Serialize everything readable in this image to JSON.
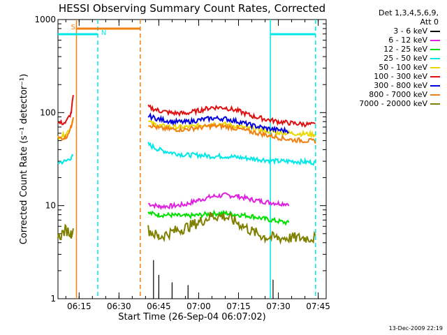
{
  "chart_data": {
    "type": "line",
    "title": "HESSI Observing Summary Count Rates, Corrected",
    "xlabel": "Start Time (26-Sep-04 06:07:02)",
    "ylabel": "Corrected Count Rate (s⁻¹ detector⁻¹)",
    "yscale": "log",
    "ylim": [
      1,
      1000
    ],
    "xlim": [
      "06:07:02",
      "07:48:00"
    ],
    "x_tick_labels": [
      "06:15",
      "06:30",
      "06:45",
      "07:00",
      "07:15",
      "07:30",
      "07:45"
    ],
    "y_tick_labels": [
      "1",
      "10",
      "100",
      "1000"
    ],
    "legend_title": [
      "Det 1,3,4,5,6,9,",
      "Att 0"
    ],
    "series": [
      {
        "name": "3 - 6 keV",
        "color": "#000000",
        "points": [
          [
            "06:42",
            1.0
          ],
          [
            "06:43",
            2.6
          ],
          [
            "06:45",
            1.8
          ],
          [
            "06:50",
            1.5
          ],
          [
            "06:56",
            1.4
          ],
          [
            "07:28",
            1.6
          ]
        ]
      },
      {
        "name": "6 - 12 keV",
        "color": "#e020e0",
        "points": [
          [
            "06:41",
            10.5
          ],
          [
            "06:45",
            9.8
          ],
          [
            "06:50",
            9.9
          ],
          [
            "06:55",
            10.3
          ],
          [
            "07:00",
            11.5
          ],
          [
            "07:05",
            12.5
          ],
          [
            "07:10",
            13.0
          ],
          [
            "07:15",
            12.6
          ],
          [
            "07:20",
            11.6
          ],
          [
            "07:25",
            11.0
          ],
          [
            "07:30",
            10.6
          ],
          [
            "07:34",
            10.5
          ]
        ]
      },
      {
        "name": "12 - 25 keV",
        "color": "#00e000",
        "points": [
          [
            "06:41",
            8.3
          ],
          [
            "06:45",
            8.0
          ],
          [
            "06:50",
            7.9
          ],
          [
            "06:55",
            7.7
          ],
          [
            "07:00",
            7.9
          ],
          [
            "07:05",
            8.2
          ],
          [
            "07:10",
            8.3
          ],
          [
            "07:15",
            8.0
          ],
          [
            "07:20",
            7.7
          ],
          [
            "07:25",
            7.2
          ],
          [
            "07:30",
            6.8
          ],
          [
            "07:34",
            6.5
          ]
        ]
      },
      {
        "name": "25 - 50 keV",
        "color": "#00e8e8",
        "points": [
          [
            "06:07",
            29
          ],
          [
            "06:10",
            30
          ],
          [
            "06:12",
            33
          ],
          [
            "06:13",
            34
          ],
          [
            "06:41",
            46
          ],
          [
            "06:42",
            44
          ],
          [
            "06:45",
            40
          ],
          [
            "06:50",
            37
          ],
          [
            "06:55",
            35
          ],
          [
            "07:00",
            35
          ],
          [
            "07:05",
            34
          ],
          [
            "07:10",
            34
          ],
          [
            "07:15",
            33
          ],
          [
            "07:20",
            32
          ],
          [
            "07:25",
            31
          ],
          [
            "07:30",
            30
          ],
          [
            "07:35",
            30
          ],
          [
            "07:40",
            29.5
          ],
          [
            "07:44",
            29
          ]
        ]
      },
      {
        "name": "50 - 100 keV",
        "color": "#e8d800",
        "points": [
          [
            "06:07",
            55
          ],
          [
            "06:10",
            58
          ],
          [
            "06:12",
            72
          ],
          [
            "06:13",
            95
          ],
          [
            "06:41",
            80
          ],
          [
            "06:45",
            72
          ],
          [
            "06:50",
            70
          ],
          [
            "06:55",
            70
          ],
          [
            "07:00",
            72
          ],
          [
            "07:05",
            76
          ],
          [
            "07:10",
            75
          ],
          [
            "07:15",
            71
          ],
          [
            "07:20",
            67
          ],
          [
            "07:25",
            64
          ],
          [
            "07:30",
            61
          ],
          [
            "07:35",
            60
          ],
          [
            "07:40",
            59
          ],
          [
            "07:44",
            58
          ]
        ]
      },
      {
        "name": "100 - 300 keV",
        "color": "#e01010",
        "points": [
          [
            "06:07",
            77
          ],
          [
            "06:10",
            78
          ],
          [
            "06:12",
            100
          ],
          [
            "06:13",
            170
          ],
          [
            "06:41",
            115
          ],
          [
            "06:45",
            105
          ],
          [
            "06:50",
            99
          ],
          [
            "06:55",
            98
          ],
          [
            "07:00",
            105
          ],
          [
            "07:05",
            114
          ],
          [
            "07:10",
            113
          ],
          [
            "07:15",
            104
          ],
          [
            "07:20",
            92
          ],
          [
            "07:25",
            85
          ],
          [
            "07:30",
            80
          ],
          [
            "07:35",
            77
          ],
          [
            "07:40",
            75
          ],
          [
            "07:44",
            74
          ]
        ]
      },
      {
        "name": "300 - 800 keV",
        "color": "#0000e0",
        "points": [
          [
            "06:41",
            92
          ],
          [
            "06:45",
            85
          ],
          [
            "06:50",
            80
          ],
          [
            "06:55",
            79
          ],
          [
            "07:00",
            83
          ],
          [
            "07:05",
            87
          ],
          [
            "07:10",
            86
          ],
          [
            "07:15",
            80
          ],
          [
            "07:20",
            73
          ],
          [
            "07:25",
            68
          ],
          [
            "07:30",
            65
          ],
          [
            "07:34",
            64
          ]
        ]
      },
      {
        "name": "800 - 7000 keV",
        "color": "#f08010",
        "points": [
          [
            "06:07",
            53
          ],
          [
            "06:10",
            54
          ],
          [
            "06:12",
            70
          ],
          [
            "06:13",
            100
          ],
          [
            "06:41",
            75
          ],
          [
            "06:45",
            68
          ],
          [
            "06:50",
            66
          ],
          [
            "06:55",
            66
          ],
          [
            "07:00",
            69
          ],
          [
            "07:05",
            72
          ],
          [
            "07:10",
            71
          ],
          [
            "07:15",
            67
          ],
          [
            "07:20",
            62
          ],
          [
            "07:25",
            58
          ],
          [
            "07:30",
            54
          ],
          [
            "07:35",
            51
          ],
          [
            "07:40",
            50
          ],
          [
            "07:44",
            49
          ]
        ]
      },
      {
        "name": "7000 - 20000 keV",
        "color": "#808000",
        "points": [
          [
            "06:07",
            4.5
          ],
          [
            "06:10",
            5.5
          ],
          [
            "06:12",
            5.0
          ],
          [
            "06:13",
            6.5
          ],
          [
            "06:41",
            5.5
          ],
          [
            "06:45",
            4.6
          ],
          [
            "06:50",
            5.2
          ],
          [
            "06:55",
            5.8
          ],
          [
            "07:00",
            6.6
          ],
          [
            "07:05",
            7.8
          ],
          [
            "07:10",
            7.6
          ],
          [
            "07:15",
            6.5
          ],
          [
            "07:20",
            5.3
          ],
          [
            "07:25",
            4.6
          ],
          [
            "07:30",
            4.5
          ],
          [
            "07:35",
            4.5
          ],
          [
            "07:40",
            4.5
          ],
          [
            "07:44",
            4.5
          ]
        ]
      }
    ],
    "flag_bars": [
      {
        "label": "S",
        "color": "#f08010",
        "start": "06:14",
        "end": "06:38"
      },
      {
        "label": "N",
        "color": "#00e8e8",
        "start": "06:07",
        "end": "06:22",
        "second_start": "07:27",
        "second_end": "07:44"
      }
    ],
    "vertical_markers": [
      {
        "time": "06:14",
        "color": "#f08010",
        "style": "solid"
      },
      {
        "time": "06:22",
        "color": "#00e8e8",
        "style": "dashed"
      },
      {
        "time": "06:38",
        "color": "#f08010",
        "style": "dashed"
      },
      {
        "time": "07:27",
        "color": "#00e8e8",
        "style": "solid"
      },
      {
        "time": "07:44",
        "color": "#00e8e8",
        "style": "dashed"
      }
    ],
    "grid": false,
    "legend_position": "right"
  },
  "timestamp": "13-Dec-2009 22:19"
}
